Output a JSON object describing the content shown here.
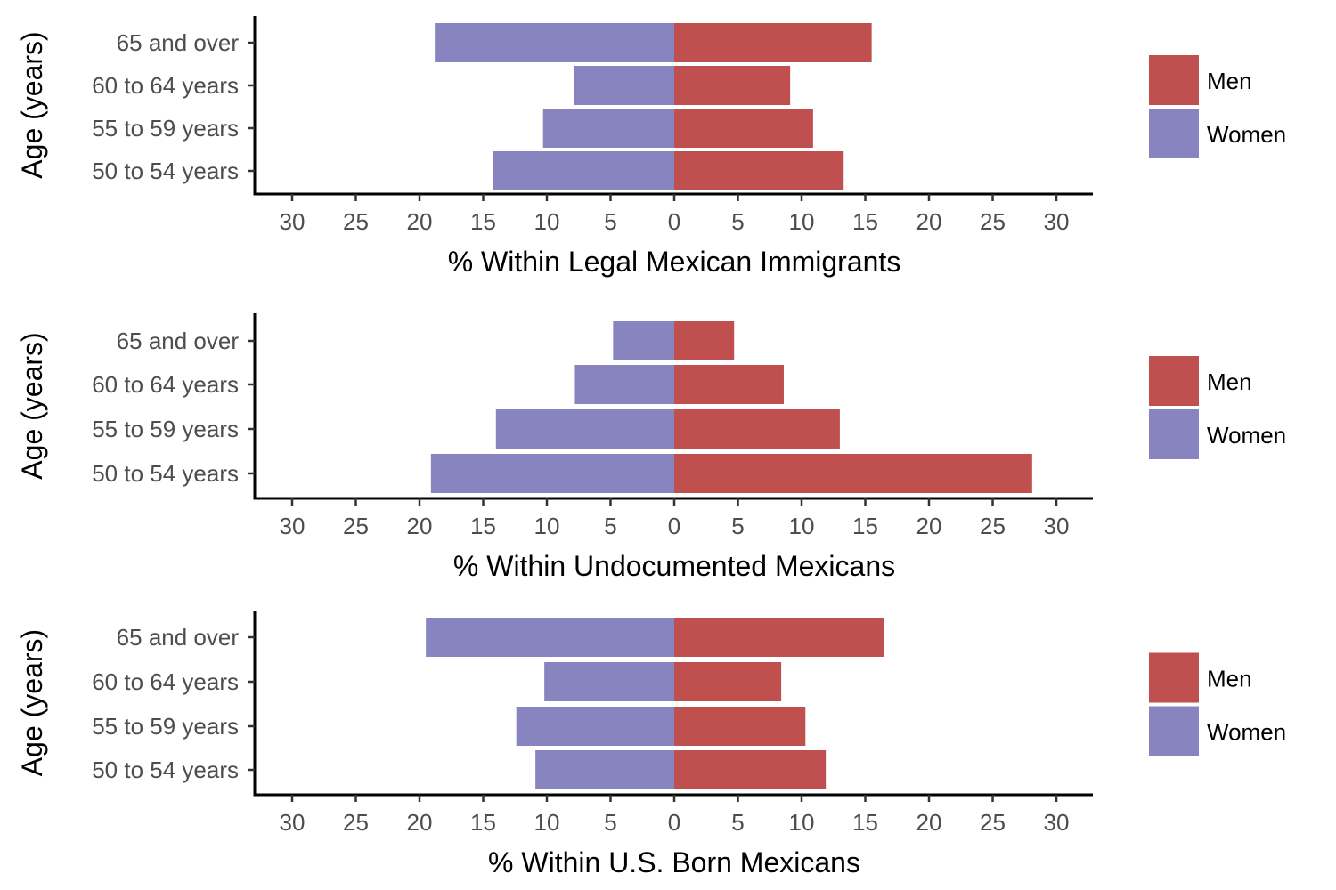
{
  "colors": {
    "men": "#c0504f",
    "women": "#8884c0"
  },
  "legend": [
    {
      "key": "men",
      "label": "Men"
    },
    {
      "key": "women",
      "label": "Women"
    }
  ],
  "chart_data": [
    {
      "type": "bar",
      "orientation": "horizontal-pyramid",
      "xlabel": "% Within Legal Mexican Immigrants",
      "ylabel": "Age (years)",
      "xlim": [
        -30,
        30
      ],
      "xticks": [
        -30,
        -25,
        -20,
        -15,
        -10,
        -5,
        0,
        5,
        10,
        15,
        20,
        25,
        30
      ],
      "xtick_labels": [
        "30",
        "25",
        "20",
        "15",
        "10",
        "5",
        "0",
        "5",
        "10",
        "15",
        "20",
        "25",
        "30"
      ],
      "categories": [
        "50 to 54 years",
        "55 to 59 years",
        "60 to 64 years",
        "65 and over"
      ],
      "series": [
        {
          "name": "Men",
          "color_key": "men",
          "values": [
            13.3,
            10.9,
            9.1,
            15.5
          ]
        },
        {
          "name": "Women",
          "color_key": "women",
          "values": [
            14.2,
            10.3,
            7.9,
            18.8
          ]
        }
      ],
      "legend_position": "right",
      "grid": false
    },
    {
      "type": "bar",
      "orientation": "horizontal-pyramid",
      "xlabel": "% Within Undocumented Mexicans",
      "ylabel": "Age (years)",
      "xlim": [
        -30,
        30
      ],
      "xticks": [
        -30,
        -25,
        -20,
        -15,
        -10,
        -5,
        0,
        5,
        10,
        15,
        20,
        25,
        30
      ],
      "xtick_labels": [
        "30",
        "25",
        "20",
        "15",
        "10",
        "5",
        "0",
        "5",
        "10",
        "15",
        "20",
        "25",
        "30"
      ],
      "categories": [
        "50 to 54 years",
        "55 to 59 years",
        "60 to 64 years",
        "65 and over"
      ],
      "series": [
        {
          "name": "Men",
          "color_key": "men",
          "values": [
            28.1,
            13.0,
            8.6,
            4.7
          ]
        },
        {
          "name": "Women",
          "color_key": "women",
          "values": [
            19.1,
            14.0,
            7.8,
            4.8
          ]
        }
      ],
      "legend_position": "right",
      "grid": false
    },
    {
      "type": "bar",
      "orientation": "horizontal-pyramid",
      "xlabel": "% Within U.S. Born Mexicans",
      "ylabel": "Age (years)",
      "xlim": [
        -30,
        30
      ],
      "xticks": [
        -30,
        -25,
        -20,
        -15,
        -10,
        -5,
        0,
        5,
        10,
        15,
        20,
        25,
        30
      ],
      "xtick_labels": [
        "30",
        "25",
        "20",
        "15",
        "10",
        "5",
        "0",
        "5",
        "10",
        "15",
        "20",
        "25",
        "30"
      ],
      "categories": [
        "50 to 54 years",
        "55 to 59 years",
        "60 to 64 years",
        "65 and over"
      ],
      "series": [
        {
          "name": "Men",
          "color_key": "men",
          "values": [
            11.9,
            10.3,
            8.4,
            16.5
          ]
        },
        {
          "name": "Women",
          "color_key": "women",
          "values": [
            10.9,
            12.4,
            10.2,
            19.5
          ]
        }
      ],
      "legend_position": "right",
      "grid": false
    }
  ]
}
